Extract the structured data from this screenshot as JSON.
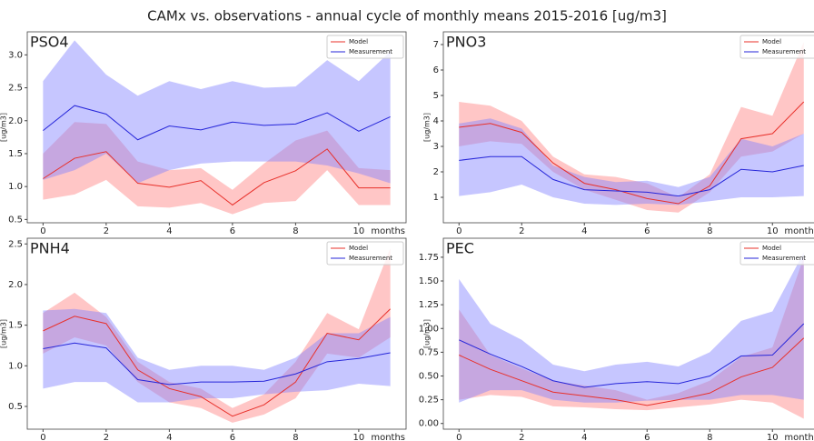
{
  "title": "CAMx vs. observations - annual cycle of monthly means 2015-2016 [ug/m3]",
  "chart_data": [
    {
      "type": "line",
      "title": "PSO4",
      "xlabel": "months",
      "ylabel": "[ug/m3]",
      "legend": "upper right",
      "x": [
        0,
        1,
        2,
        3,
        4,
        5,
        6,
        7,
        8,
        9,
        10,
        11
      ],
      "xlim": [
        -0.5,
        11.5
      ],
      "xticks": [
        0,
        2,
        4,
        6,
        8,
        10
      ],
      "ylim": [
        0.45,
        3.35
      ],
      "yticks": [
        0.5,
        {
          "value": 1,
          "label": "1.0"
        },
        1.5,
        {
          "value": 2,
          "label": "2.0"
        },
        2.5,
        {
          "value": 3,
          "label": "3.0"
        }
      ],
      "series": [
        {
          "name": "Model",
          "color": "#e8302a",
          "fill": "#ff8080",
          "values": [
            1.12,
            1.43,
            1.53,
            1.05,
            0.99,
            1.09,
            0.72,
            1.06,
            1.24,
            1.57,
            0.98,
            0.98
          ],
          "lower": [
            0.8,
            0.88,
            1.1,
            0.7,
            0.68,
            0.75,
            0.58,
            0.75,
            0.78,
            1.25,
            0.72,
            0.72
          ],
          "upper": [
            1.5,
            1.98,
            1.95,
            1.38,
            1.25,
            1.28,
            0.95,
            1.35,
            1.7,
            1.85,
            1.28,
            1.25
          ]
        },
        {
          "name": "Measurement",
          "color": "#2626d9",
          "fill": "#8080ff",
          "values": [
            1.85,
            2.23,
            2.1,
            1.71,
            1.92,
            1.86,
            1.98,
            1.93,
            1.95,
            2.12,
            1.84,
            2.06
          ],
          "lower": [
            1.1,
            1.25,
            1.5,
            1.05,
            1.25,
            1.35,
            1.38,
            1.38,
            1.38,
            1.32,
            1.2,
            1.05
          ],
          "upper": [
            2.6,
            3.22,
            2.7,
            2.38,
            2.6,
            2.48,
            2.6,
            2.5,
            2.52,
            2.92,
            2.6,
            3.05
          ]
        }
      ]
    },
    {
      "type": "line",
      "title": "PNO3",
      "xlabel": "months",
      "ylabel": "[ug/m3]",
      "legend": "upper right",
      "x": [
        0,
        1,
        2,
        3,
        4,
        5,
        6,
        7,
        8,
        9,
        10,
        11
      ],
      "xlim": [
        -0.5,
        11.5
      ],
      "xticks": [
        0,
        2,
        4,
        6,
        8,
        10
      ],
      "ylim": [
        0.0,
        7.5
      ],
      "yticks": [
        1,
        2,
        3,
        4,
        5,
        6,
        7
      ],
      "series": [
        {
          "name": "Model",
          "color": "#e8302a",
          "fill": "#ff8080",
          "values": [
            3.75,
            3.9,
            3.55,
            2.35,
            1.55,
            1.3,
            0.95,
            0.75,
            1.45,
            3.3,
            3.5,
            4.75
          ],
          "lower": [
            3.0,
            3.2,
            3.1,
            2.0,
            1.3,
            0.9,
            0.5,
            0.4,
            1.2,
            2.6,
            2.8,
            3.5
          ],
          "upper": [
            4.75,
            4.6,
            4.0,
            2.6,
            1.9,
            1.8,
            1.55,
            1.0,
            1.9,
            4.55,
            4.2,
            7.1
          ]
        },
        {
          "name": "Measurement",
          "color": "#2626d9",
          "fill": "#8080ff",
          "values": [
            2.45,
            2.6,
            2.6,
            1.7,
            1.3,
            1.25,
            1.2,
            1.05,
            1.3,
            2.1,
            2.0,
            2.25
          ],
          "lower": [
            1.05,
            1.2,
            1.5,
            1.0,
            0.75,
            0.7,
            0.75,
            0.7,
            0.85,
            1.0,
            1.0,
            1.05
          ],
          "upper": [
            3.9,
            4.1,
            3.7,
            2.25,
            1.8,
            1.6,
            1.65,
            1.4,
            1.8,
            3.3,
            3.0,
            3.5
          ]
        }
      ]
    },
    {
      "type": "line",
      "title": "PNH4",
      "xlabel": "months",
      "ylabel": "[ug/m3]",
      "legend": "upper right",
      "x": [
        0,
        1,
        2,
        3,
        4,
        5,
        6,
        7,
        8,
        9,
        10,
        11
      ],
      "xlim": [
        -0.5,
        11.5
      ],
      "xticks": [
        0,
        2,
        4,
        6,
        8,
        10
      ],
      "ylim": [
        0.22,
        2.57
      ],
      "yticks": [
        0.5,
        {
          "value": 1,
          "label": "1.0"
        },
        1.5,
        {
          "value": 2,
          "label": "2.0"
        },
        2.5
      ],
      "series": [
        {
          "name": "Model",
          "color": "#e8302a",
          "fill": "#ff8080",
          "values": [
            1.43,
            1.61,
            1.52,
            0.95,
            0.72,
            0.62,
            0.38,
            0.52,
            0.8,
            1.4,
            1.32,
            1.7
          ],
          "lower": [
            1.15,
            1.35,
            1.25,
            0.8,
            0.55,
            0.48,
            0.3,
            0.4,
            0.6,
            1.15,
            1.1,
            1.35
          ],
          "upper": [
            1.65,
            1.9,
            1.6,
            1.05,
            0.8,
            0.72,
            0.48,
            0.65,
            1.05,
            1.65,
            1.45,
            2.45
          ]
        },
        {
          "name": "Measurement",
          "color": "#2626d9",
          "fill": "#8080ff",
          "values": [
            1.21,
            1.28,
            1.22,
            0.83,
            0.77,
            0.8,
            0.8,
            0.81,
            0.9,
            1.05,
            1.09,
            1.16
          ],
          "lower": [
            0.72,
            0.8,
            0.8,
            0.55,
            0.55,
            0.6,
            0.6,
            0.65,
            0.68,
            0.7,
            0.78,
            0.75
          ],
          "upper": [
            1.68,
            1.7,
            1.65,
            1.1,
            0.95,
            1.0,
            1.0,
            0.95,
            1.1,
            1.4,
            1.4,
            1.6
          ]
        }
      ]
    },
    {
      "type": "line",
      "title": "PEC",
      "xlabel": "months",
      "ylabel": "[ug/m3]",
      "legend": "upper right",
      "x": [
        0,
        1,
        2,
        3,
        4,
        5,
        6,
        7,
        8,
        9,
        10,
        11
      ],
      "xlim": [
        -0.5,
        11.5
      ],
      "xticks": [
        0,
        2,
        4,
        6,
        8,
        10
      ],
      "ylim": [
        -0.06,
        1.95
      ],
      "yticks": [
        {
          "value": 0,
          "label": "0.00"
        },
        0.25,
        {
          "value": 0.5,
          "label": "0.50"
        },
        0.75,
        {
          "value": 1,
          "label": "1.00"
        },
        1.25,
        {
          "value": 1.5,
          "label": "1.50"
        },
        1.75
      ],
      "series": [
        {
          "name": "Model",
          "color": "#e8302a",
          "fill": "#ff8080",
          "values": [
            0.72,
            0.57,
            0.45,
            0.33,
            0.29,
            0.25,
            0.19,
            0.25,
            0.32,
            0.49,
            0.59,
            0.9
          ],
          "lower": [
            0.25,
            0.3,
            0.28,
            0.18,
            0.17,
            0.15,
            0.14,
            0.17,
            0.2,
            0.25,
            0.22,
            0.05
          ],
          "upper": [
            1.2,
            0.72,
            0.58,
            0.45,
            0.4,
            0.35,
            0.25,
            0.32,
            0.45,
            0.7,
            0.8,
            1.75
          ]
        },
        {
          "name": "Measurement",
          "color": "#2626d9",
          "fill": "#8080ff",
          "values": [
            0.88,
            0.73,
            0.6,
            0.45,
            0.38,
            0.42,
            0.44,
            0.42,
            0.5,
            0.71,
            0.72,
            1.05
          ],
          "lower": [
            0.22,
            0.35,
            0.35,
            0.25,
            0.22,
            0.22,
            0.24,
            0.25,
            0.25,
            0.3,
            0.3,
            0.25
          ],
          "upper": [
            1.52,
            1.05,
            0.88,
            0.62,
            0.55,
            0.62,
            0.65,
            0.6,
            0.75,
            1.08,
            1.18,
            1.8
          ]
        }
      ]
    }
  ]
}
